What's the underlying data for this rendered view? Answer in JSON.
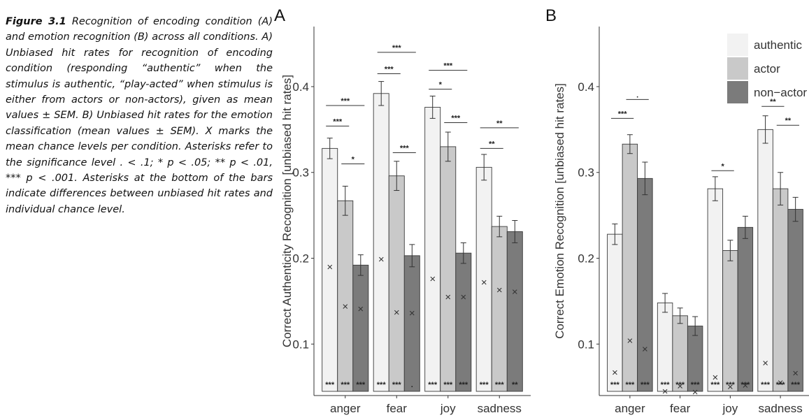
{
  "caption": {
    "label": "Figure 3.1",
    "text": "Recognition of encoding condition (A) and emotion recognition (B) across all conditions. A) Unbiased hit rates for recognition of encoding condition (responding “authentic” when the stimulus is authentic, “play-acted” when stimulus is either from actors or non-actors), given as mean values ± SEM. B) Unbiased hit rates for the emotion classification (mean values ± SEM). X marks the mean chance levels per condition. Asterisks refer to the significance level . < .1; * p < .05; ** p < .01, *** p < .001. Asterisks at the bottom of the bars indicate differences between unbiased hit rates and individual chance level."
  },
  "colors": {
    "authentic": "#f2f2f2",
    "actor": "#c9c9c9",
    "non_actor": "#7b7b7b",
    "stroke": "#3a3a3a"
  },
  "chart_data": [
    {
      "panel": "A",
      "type": "bar",
      "ylabel": "Correct Authenticity Recognition [unbiased hit rates]",
      "ylim": [
        0.04,
        0.47
      ],
      "yticks": [
        "0.1",
        "0.2",
        "0.3",
        "0.4"
      ],
      "categories": [
        "anger",
        "fear",
        "joy",
        "sadness"
      ],
      "legend": null,
      "series": [
        {
          "key": "authentic",
          "values": [
            0.328,
            0.392,
            0.376,
            0.306
          ],
          "sem": [
            0.012,
            0.014,
            0.013,
            0.015
          ],
          "chance": [
            0.19,
            0.199,
            0.176,
            0.172
          ],
          "sig": [
            "***",
            "***",
            "***",
            "***"
          ]
        },
        {
          "key": "actor",
          "values": [
            0.267,
            0.296,
            0.33,
            0.237
          ],
          "sem": [
            0.017,
            0.017,
            0.017,
            0.012
          ],
          "chance": [
            0.144,
            0.137,
            0.155,
            0.163
          ],
          "sig": [
            "***",
            "***",
            "***",
            "***"
          ]
        },
        {
          "key": "non_actor",
          "values": [
            0.192,
            0.203,
            0.206,
            0.231
          ],
          "sem": [
            0.012,
            0.013,
            0.012,
            0.013
          ],
          "chance": [
            0.141,
            0.136,
            0.155,
            0.161
          ],
          "sig": [
            "***",
            ".",
            "***",
            "**"
          ]
        }
      ],
      "comparisons": [
        {
          "cat": 0,
          "from": 0,
          "to": 1,
          "y": 0.354,
          "label": "***"
        },
        {
          "cat": 0,
          "from": 0,
          "to": 2,
          "y": 0.378,
          "label": "***"
        },
        {
          "cat": 0,
          "from": 1,
          "to": 2,
          "y": 0.31,
          "label": "*"
        },
        {
          "cat": 1,
          "from": 0,
          "to": 1,
          "y": 0.415,
          "label": "***"
        },
        {
          "cat": 1,
          "from": 0,
          "to": 2,
          "y": 0.44,
          "label": "***"
        },
        {
          "cat": 1,
          "from": 1,
          "to": 2,
          "y": 0.323,
          "label": "***"
        },
        {
          "cat": 2,
          "from": 0,
          "to": 1,
          "y": 0.397,
          "label": "*"
        },
        {
          "cat": 2,
          "from": 0,
          "to": 2,
          "y": 0.419,
          "label": "***"
        },
        {
          "cat": 2,
          "from": 1,
          "to": 2,
          "y": 0.358,
          "label": "***"
        },
        {
          "cat": 3,
          "from": 0,
          "to": 1,
          "y": 0.328,
          "label": "**"
        },
        {
          "cat": 3,
          "from": 0,
          "to": 2,
          "y": 0.352,
          "label": "**"
        }
      ]
    },
    {
      "panel": "B",
      "type": "bar",
      "ylabel": "Correct Emotion Recognition [unbiased hit rates]",
      "ylim": [
        0.04,
        0.47
      ],
      "yticks": [
        "0.1",
        "0.2",
        "0.3",
        "0.4"
      ],
      "categories": [
        "anger",
        "fear",
        "joy",
        "sadness"
      ],
      "legend": [
        "authentic",
        "actor",
        "non−actor"
      ],
      "series": [
        {
          "key": "authentic",
          "values": [
            0.228,
            0.148,
            0.281,
            0.35
          ],
          "sem": [
            0.012,
            0.011,
            0.014,
            0.016
          ],
          "chance": [
            0.067,
            0.045,
            0.061,
            0.078
          ],
          "sig": [
            "***",
            "***",
            "***",
            "***"
          ]
        },
        {
          "key": "actor",
          "values": [
            0.333,
            0.133,
            0.209,
            0.281
          ],
          "sem": [
            0.011,
            0.009,
            0.012,
            0.019
          ],
          "chance": [
            0.104,
            0.051,
            0.05,
            0.055
          ],
          "sig": [
            "***",
            "***",
            "***",
            "***"
          ]
        },
        {
          "key": "non_actor",
          "values": [
            0.293,
            0.121,
            0.236,
            0.257
          ],
          "sem": [
            0.019,
            0.011,
            0.013,
            0.014
          ],
          "chance": [
            0.094,
            0.044,
            0.052,
            0.066
          ],
          "sig": [
            "***",
            "***",
            "***",
            "***"
          ]
        }
      ],
      "comparisons": [
        {
          "cat": 0,
          "from": 0,
          "to": 1,
          "y": 0.363,
          "label": "***"
        },
        {
          "cat": 0,
          "from": 1,
          "to": 2,
          "y": 0.385,
          "label": "."
        },
        {
          "cat": 2,
          "from": 0,
          "to": 1,
          "y": 0.302,
          "label": "*"
        },
        {
          "cat": 3,
          "from": 0,
          "to": 1,
          "y": 0.377,
          "label": "**"
        },
        {
          "cat": 3,
          "from": 1,
          "to": 2,
          "y": 0.355,
          "label": "**"
        }
      ]
    }
  ]
}
